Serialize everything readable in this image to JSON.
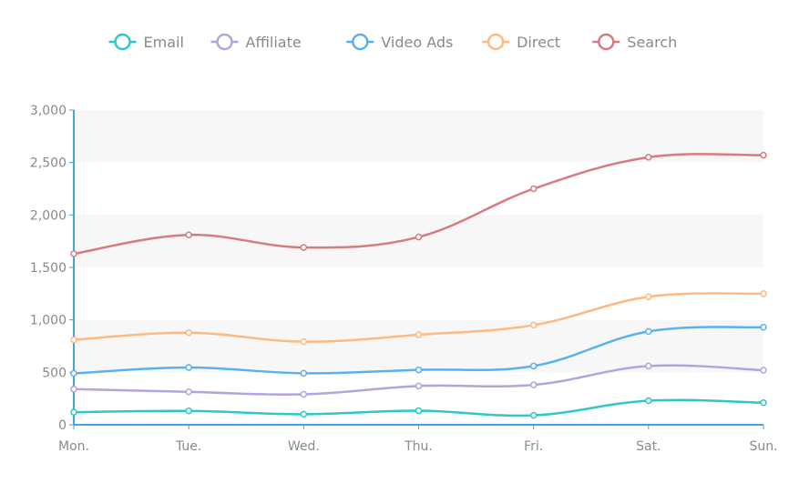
{
  "chart_data": {
    "type": "line",
    "smooth": true,
    "categories": [
      "Mon.",
      "Tue.",
      "Wed.",
      "Thu.",
      "Fri.",
      "Sat.",
      "Sun."
    ],
    "ylim": [
      0,
      3000
    ],
    "yticks": [
      0,
      500,
      1000,
      1500,
      2000,
      2500,
      3000
    ],
    "ytick_labels": [
      "0",
      "500",
      "1,000",
      "1,500",
      "2,000",
      "2,500",
      "3,000"
    ],
    "grid": "alternating horizontal bands",
    "legend_position": "top-center",
    "series": [
      {
        "name": "Email",
        "color": "#2ec7c9",
        "values": [
          120,
          132,
          101,
          134,
          90,
          230,
          210
        ]
      },
      {
        "name": "Affiliate",
        "color": "#b6a2de",
        "values": [
          340,
          314,
          290,
          370,
          380,
          560,
          520
        ]
      },
      {
        "name": "Video Ads",
        "color": "#5ab1ef",
        "values": [
          490,
          546,
          491,
          524,
          560,
          890,
          930
        ]
      },
      {
        "name": "Direct",
        "color": "#ffb980",
        "values": [
          810,
          878,
          792,
          858,
          950,
          1220,
          1250
        ]
      },
      {
        "name": "Search",
        "color": "#d87a80",
        "values": [
          1630,
          1810,
          1690,
          1790,
          2250,
          2550,
          2570
        ]
      }
    ]
  }
}
